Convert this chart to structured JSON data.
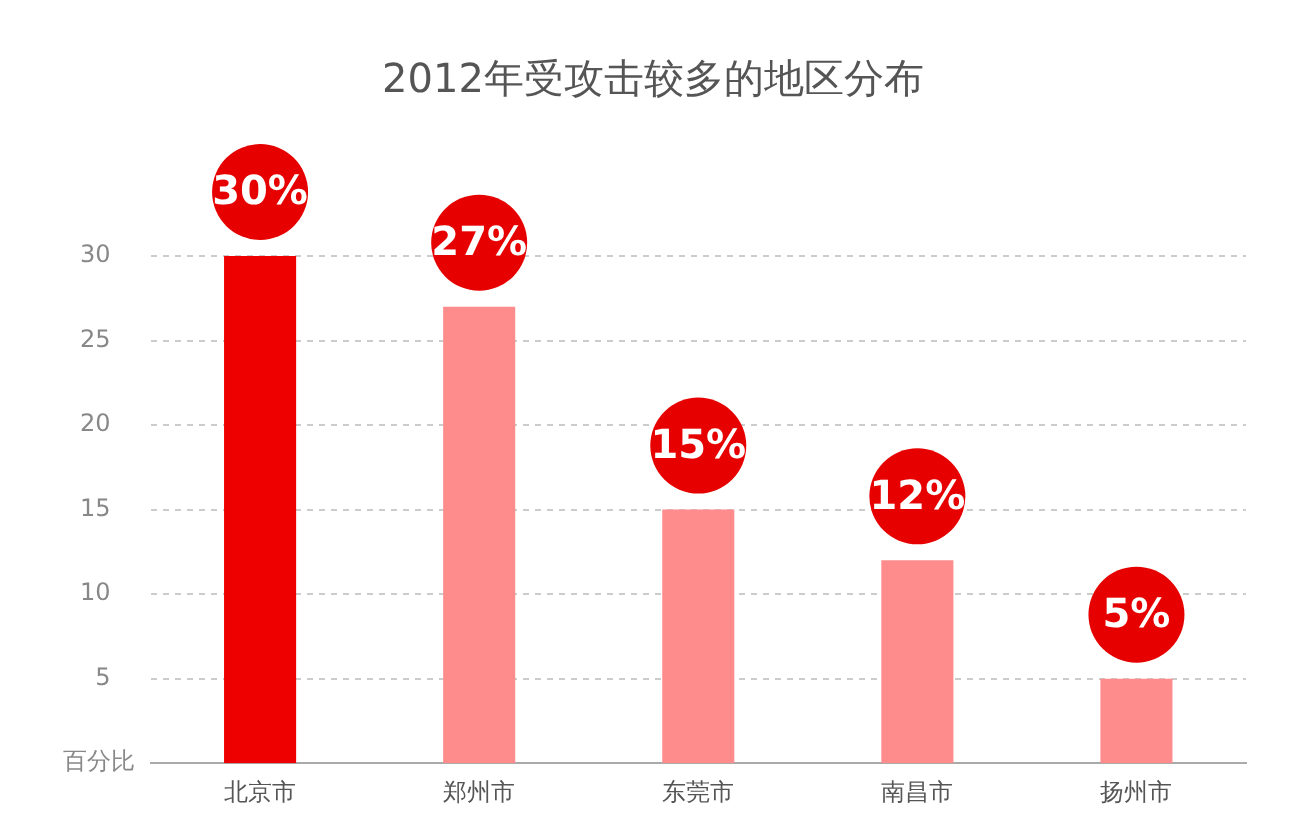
{
  "chart_data": {
    "type": "bar",
    "title": "2012年受攻击较多的地区分布",
    "ylabel": "百分比",
    "categories": [
      "北京市",
      "郑州市",
      "东莞市",
      "南昌市",
      "扬州市"
    ],
    "values": [
      30,
      27,
      15,
      12,
      5
    ],
    "colors": [
      "#ee0000",
      "#ff8c8c",
      "#ff8c8c",
      "#ff8c8c",
      "#ff8c8c"
    ],
    "value_labels": [
      "30%",
      "27%",
      "15%",
      "12%",
      "5%"
    ],
    "ylim": [
      0,
      30
    ],
    "yticks": [
      5,
      10,
      15,
      20,
      25,
      30
    ],
    "grid": "y",
    "legend": false
  }
}
